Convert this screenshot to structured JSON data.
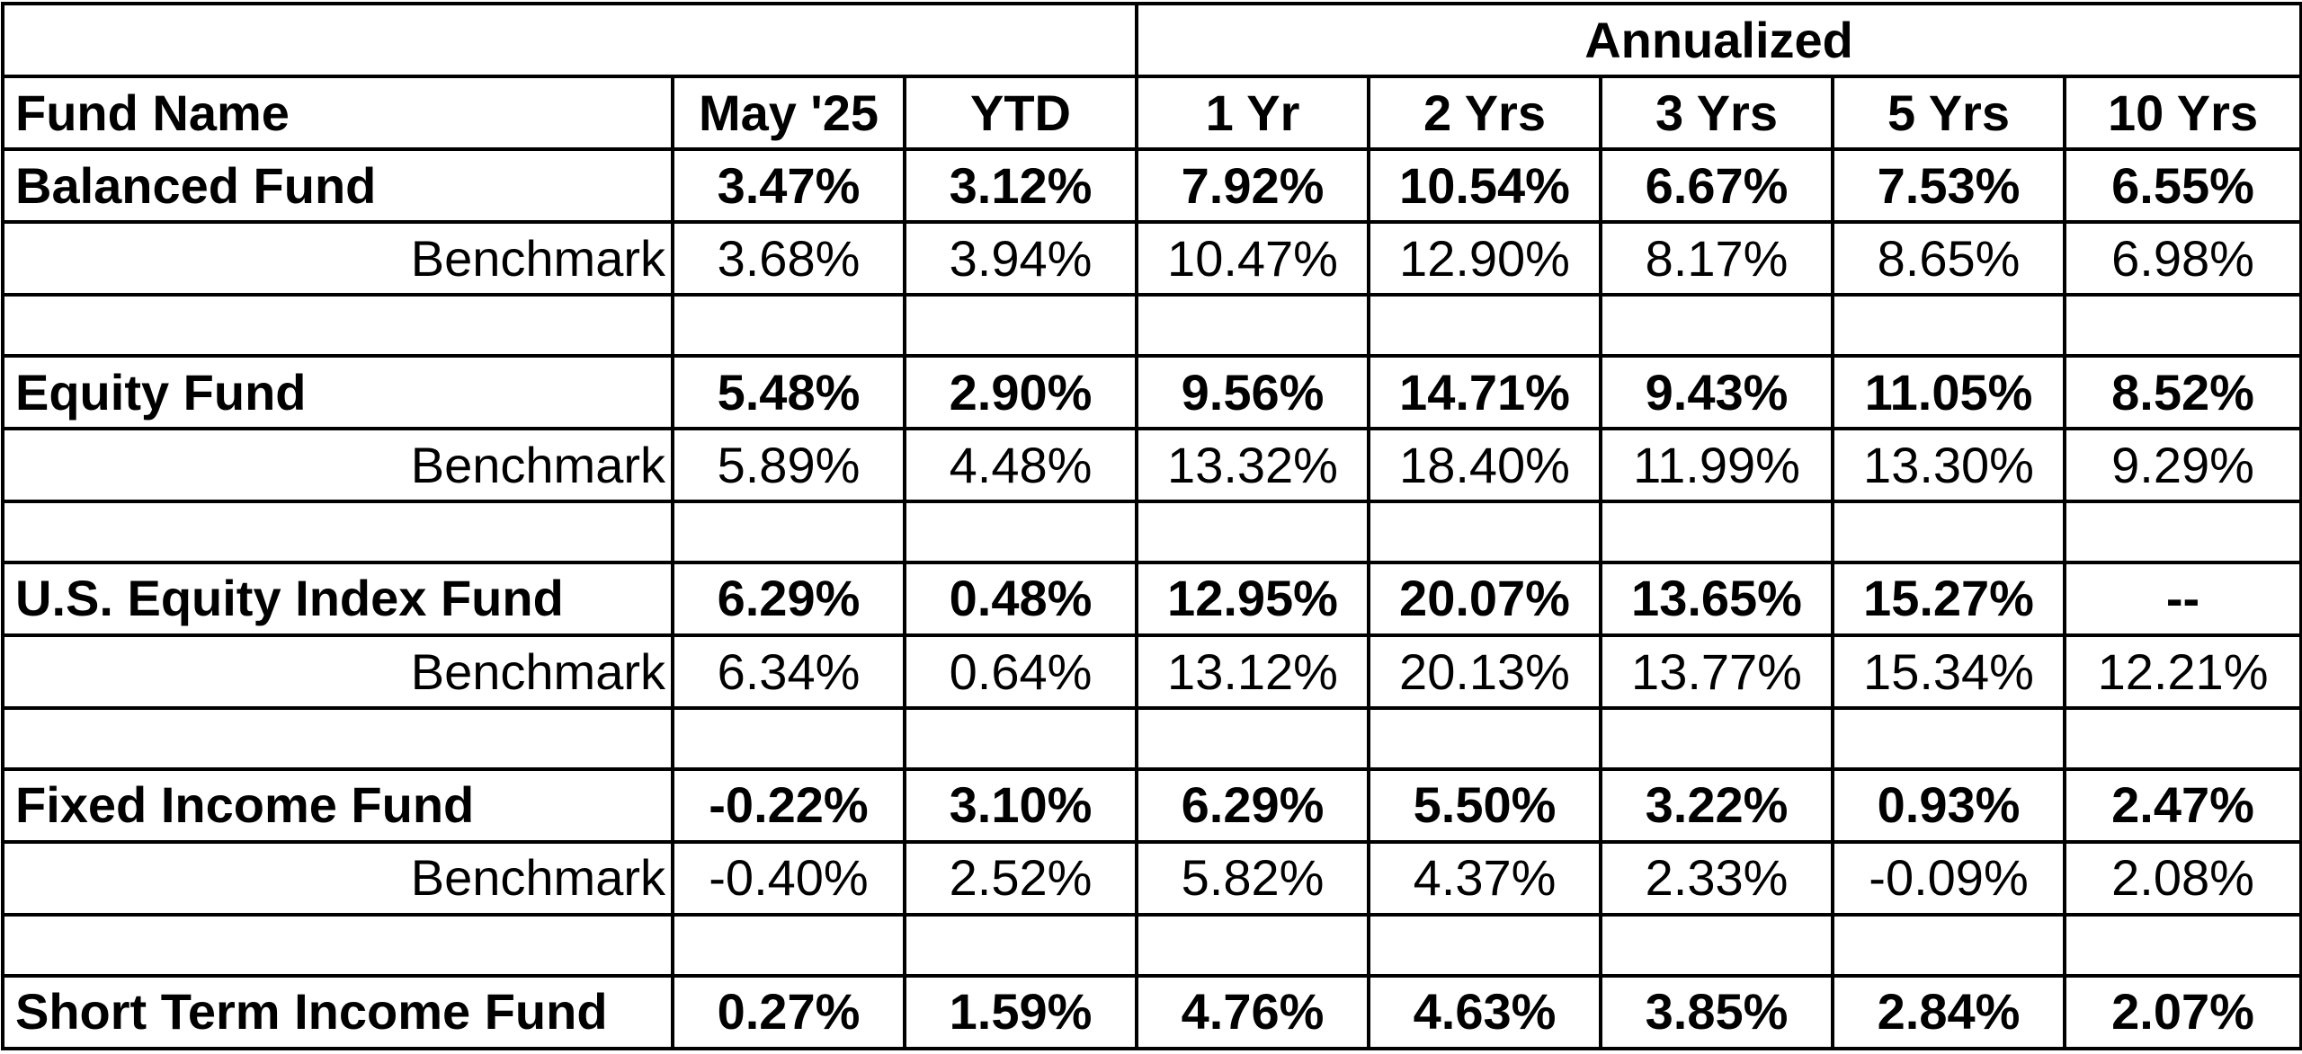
{
  "header": {
    "annualized": "Annualized",
    "columns": [
      "Fund Name",
      "May '25",
      "YTD",
      "1 Yr",
      "2 Yrs",
      "3 Yrs",
      "5 Yrs",
      "10 Yrs"
    ]
  },
  "funds": [
    {
      "name": "Balanced Fund",
      "values": [
        "3.47%",
        "3.12%",
        "7.92%",
        "10.54%",
        "6.67%",
        "7.53%",
        "6.55%"
      ],
      "benchmark_label": "Benchmark",
      "benchmark": [
        "3.68%",
        "3.94%",
        "10.47%",
        "12.90%",
        "8.17%",
        "8.65%",
        "6.98%"
      ]
    },
    {
      "name": "Equity Fund",
      "values": [
        "5.48%",
        "2.90%",
        "9.56%",
        "14.71%",
        "9.43%",
        "11.05%",
        "8.52%"
      ],
      "benchmark_label": "Benchmark",
      "benchmark": [
        "5.89%",
        "4.48%",
        "13.32%",
        "18.40%",
        "11.99%",
        "13.30%",
        "9.29%"
      ]
    },
    {
      "name": "U.S. Equity Index Fund",
      "values": [
        "6.29%",
        "0.48%",
        "12.95%",
        "20.07%",
        "13.65%",
        "15.27%",
        "--"
      ],
      "benchmark_label": "Benchmark",
      "benchmark": [
        "6.34%",
        "0.64%",
        "13.12%",
        "20.13%",
        "13.77%",
        "15.34%",
        "12.21%"
      ]
    },
    {
      "name": "Fixed Income Fund",
      "values": [
        "-0.22%",
        "3.10%",
        "6.29%",
        "5.50%",
        "3.22%",
        "0.93%",
        "2.47%"
      ],
      "benchmark_label": "Benchmark",
      "benchmark": [
        "-0.40%",
        "2.52%",
        "5.82%",
        "4.37%",
        "2.33%",
        "-0.09%",
        "2.08%"
      ]
    },
    {
      "name": "Short Term Income Fund",
      "values": [
        "0.27%",
        "1.59%",
        "4.76%",
        "4.63%",
        "3.85%",
        "2.84%",
        "2.07%"
      ]
    }
  ]
}
